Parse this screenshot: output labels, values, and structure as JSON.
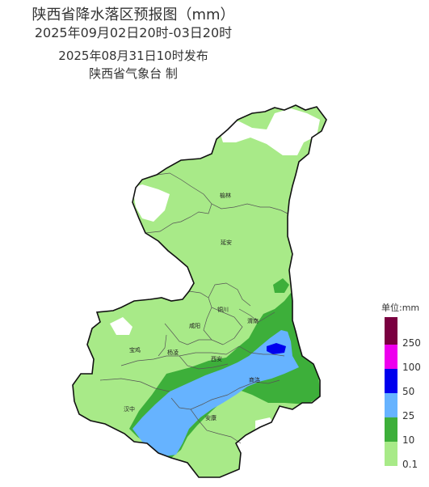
{
  "title": {
    "line1": "陕西省降水落区预报图（mm）",
    "line2": "2025年09月02日20时-03日20时",
    "line3": "2025年08月31日10时发布",
    "line4": "陕西省气象台 制"
  },
  "cities": {
    "yulin": "榆林",
    "yanan": "延安",
    "tongchuan": "铜川",
    "weinan": "渭南",
    "xianyang": "咸阳",
    "baoji": "宝鸡",
    "yangling": "杨凌",
    "xian": "西安",
    "shangluo": "商洛",
    "hanzhong": "汉中",
    "ankang": "安康"
  },
  "legend": {
    "title": "单位:mm",
    "levels": [
      {
        "label": "250",
        "color": "#7a0040"
      },
      {
        "label": "100",
        "color": "#ee00ee"
      },
      {
        "label": "50",
        "color": "#0000ee"
      },
      {
        "label": "25",
        "color": "#66b3ff"
      },
      {
        "label": "10",
        "color": "#3daf3a"
      },
      {
        "label": "0.1",
        "color": "#a8ea88"
      }
    ]
  },
  "colors": {
    "light_rain": "#a8ea88",
    "moderate_rain": "#3daf3a",
    "heavy_rain": "#66b3ff",
    "rainstorm": "#0000ee",
    "no_rain": "#ffffff"
  }
}
